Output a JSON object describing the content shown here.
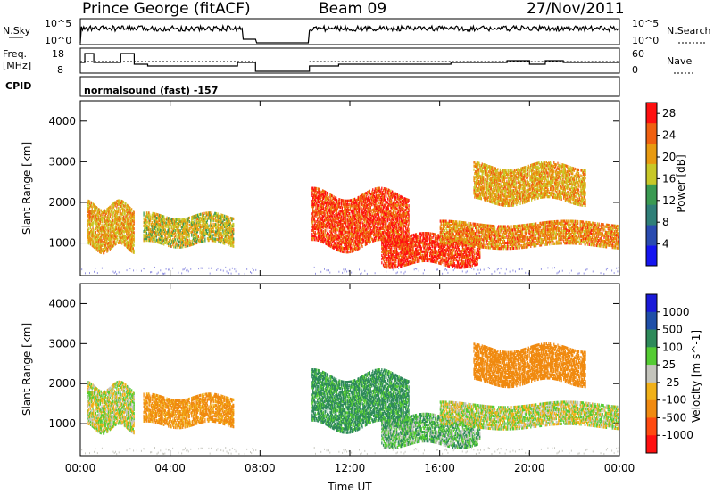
{
  "header": {
    "title": "Prince George (fitACF)",
    "beam": "Beam 09",
    "date": "27/Nov/2011"
  },
  "strip_panels": {
    "nsky": {
      "label": "N.Sky",
      "ticks": [
        "10^5",
        "10^0"
      ]
    },
    "nsearch": {
      "label": "N.Search",
      "ticks": [
        "10^5",
        "10^0"
      ]
    },
    "freq": {
      "label_top": "Freq.",
      "label_bottom": "[MHz]",
      "ticks": [
        "18",
        "8"
      ]
    },
    "nave": {
      "label": "Nave",
      "ticks": [
        "60",
        "0"
      ]
    },
    "cpid": {
      "label": "CPID",
      "value": "normalsound (fast) -157"
    }
  },
  "colors": {
    "power_scale": [
      "#1515f0",
      "#2a4bb0",
      "#2f7f78",
      "#3a9a52",
      "#c8c828",
      "#e89a10",
      "#f06010",
      "#ff1010"
    ],
    "velocity_scale": [
      "#1a1ad8",
      "#1f4fa8",
      "#2e8a5a",
      "#55cc33",
      "#c4c4bc",
      "#f0b018",
      "#f08a10",
      "#ff4a10",
      "#ff1010"
    ],
    "noise": "#8a8ae0"
  },
  "chart_data": [
    {
      "type": "heatmap",
      "title": "Power",
      "xlabel": "",
      "ylabel": "Slant Range [km]",
      "xlim": [
        "00:00",
        "24:00"
      ],
      "ylim": [
        200,
        4500
      ],
      "x_ticks": [
        "00:00",
        "04:00",
        "08:00",
        "12:00",
        "16:00",
        "20:00",
        "00:00"
      ],
      "y_ticks": [
        "1000",
        "2000",
        "3000",
        "4000"
      ],
      "colorbar": {
        "label": "Power [dB]",
        "ticks": [
          "4",
          "8",
          "12",
          "16",
          "20",
          "24",
          "28"
        ],
        "range": [
          0,
          30
        ]
      },
      "data_gap_hours": [
        7.8,
        10.2
      ],
      "echo_regions": [
        {
          "t_start": 0.3,
          "t_end": 2.4,
          "range_low": 850,
          "range_high": 1900,
          "value": 20
        },
        {
          "t_start": 2.8,
          "t_end": 6.8,
          "range_low": 950,
          "range_high": 1650,
          "value": 18
        },
        {
          "t_start": 10.3,
          "t_end": 14.6,
          "range_low": 900,
          "range_high": 2200,
          "value": 26
        },
        {
          "t_start": 13.4,
          "t_end": 17.8,
          "range_low": 450,
          "range_high": 1150,
          "value": 27
        },
        {
          "t_start": 16.0,
          "t_end": 24.0,
          "range_low": 900,
          "range_high": 1450,
          "value": 22
        },
        {
          "t_start": 17.5,
          "t_end": 22.5,
          "range_low": 2000,
          "range_high": 2900,
          "value": 20
        }
      ]
    },
    {
      "type": "heatmap",
      "title": "Velocity",
      "xlabel": "Time UT",
      "ylabel": "Slant Range [km]",
      "xlim": [
        "00:00",
        "24:00"
      ],
      "ylim": [
        200,
        4500
      ],
      "x_ticks": [
        "00:00",
        "04:00",
        "08:00",
        "12:00",
        "16:00",
        "20:00",
        "00:00"
      ],
      "y_ticks": [
        "1000",
        "2000",
        "3000",
        "4000"
      ],
      "colorbar": {
        "label": "Velocity [m s^-1]",
        "ticks": [
          "1000",
          "500",
          "100",
          "25",
          "-25",
          "-100",
          "-500",
          "-1000"
        ]
      },
      "data_gap_hours": [
        7.8,
        10.2
      ],
      "echo_regions": [
        {
          "t_start": 0.3,
          "t_end": 2.4,
          "range_low": 850,
          "range_high": 1900,
          "value": 0
        },
        {
          "t_start": 2.8,
          "t_end": 6.8,
          "range_low": 950,
          "range_high": 1650,
          "value": -150
        },
        {
          "t_start": 10.3,
          "t_end": 14.6,
          "range_low": 900,
          "range_high": 2200,
          "value": 150
        },
        {
          "t_start": 13.4,
          "t_end": 17.8,
          "range_low": 450,
          "range_high": 1150,
          "value": 80
        },
        {
          "t_start": 16.0,
          "t_end": 24.0,
          "range_low": 900,
          "range_high": 1450,
          "value": 0
        },
        {
          "t_start": 17.5,
          "t_end": 22.5,
          "range_low": 2000,
          "range_high": 2900,
          "value": -300
        }
      ]
    }
  ]
}
